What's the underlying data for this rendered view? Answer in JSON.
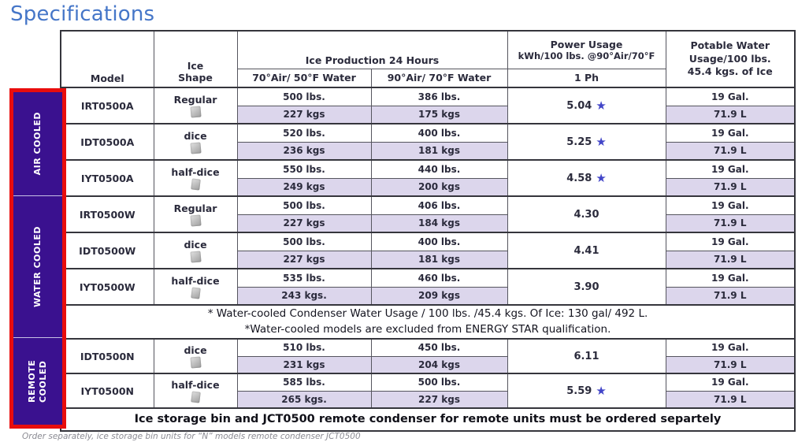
{
  "title": "Specifications",
  "colors": {
    "title_blue": "#4576c8",
    "group_strip_purple": "#3a118f",
    "group_strip_border_red": "#e90d0d",
    "kgs_row_lavender": "#dcd6ec",
    "energy_star_blue": "#4245c8"
  },
  "header": {
    "model": "Model",
    "ice_shape": "Ice Shape",
    "ice_production": "Ice Production 24 Hours",
    "col_air50": "70°Air/ 50°F Water",
    "col_air70": "90°Air/ 70°F Water",
    "power_line1": "Power Usage",
    "power_line2": "kWh/100 lbs. @90°Air/70°F",
    "power_phase": "1 Ph",
    "potable_line1": "Potable Water",
    "potable_line2": "Usage/100 lbs.",
    "potable_line3": "45.4 kgs. of Ice"
  },
  "icons": {
    "energy_star": "★",
    "ice_cube": "ice-cube-icon"
  },
  "groups": [
    {
      "id": "air-cooled",
      "label": "AIR COOLED",
      "rows": [
        {
          "model": "IRT0500A",
          "shape": "Regular",
          "prod_70air_lbs": "500 lbs.",
          "prod_70air_kgs": "227 kgs",
          "prod_90air_lbs": "386 lbs.",
          "prod_90air_kgs": "175 kgs",
          "power_kwh": "5.04",
          "energy_star": true,
          "water_gal": "19 Gal.",
          "water_liters": "71.9 L"
        },
        {
          "model": "IDT0500A",
          "shape": "dice",
          "prod_70air_lbs": "520 lbs.",
          "prod_70air_kgs": "236 kgs",
          "prod_90air_lbs": "400 lbs.",
          "prod_90air_kgs": "181 kgs",
          "power_kwh": "5.25",
          "energy_star": true,
          "water_gal": "19 Gal.",
          "water_liters": "71.9 L"
        },
        {
          "model": "IYT0500A",
          "shape": "half-dice",
          "prod_70air_lbs": "550 lbs.",
          "prod_70air_kgs": "249 kgs",
          "prod_90air_lbs": "440 lbs.",
          "prod_90air_kgs": "200 kgs",
          "power_kwh": "4.58",
          "energy_star": true,
          "water_gal": "19 Gal.",
          "water_liters": "71.9 L"
        }
      ]
    },
    {
      "id": "water-cooled",
      "label": "WATER COOLED",
      "rows": [
        {
          "model": "IRT0500W",
          "shape": "Regular",
          "prod_70air_lbs": "500 lbs.",
          "prod_70air_kgs": "227 kgs",
          "prod_90air_lbs": "406 lbs.",
          "prod_90air_kgs": "184 kgs",
          "power_kwh": "4.30",
          "energy_star": false,
          "water_gal": "19 Gal.",
          "water_liters": "71.9 L"
        },
        {
          "model": "IDT0500W",
          "shape": "dice",
          "prod_70air_lbs": "500 lbs.",
          "prod_70air_kgs": "227 kgs",
          "prod_90air_lbs": "400 lbs.",
          "prod_90air_kgs": "181 kgs",
          "power_kwh": "4.41",
          "energy_star": false,
          "water_gal": "19 Gal.",
          "water_liters": "71.9 L"
        },
        {
          "model": "IYT0500W",
          "shape": "half-dice",
          "prod_70air_lbs": "535 lbs.",
          "prod_70air_kgs": "243 kgs.",
          "prod_90air_lbs": "460 lbs.",
          "prod_90air_kgs": "209 kgs",
          "power_kwh": "3.90",
          "energy_star": false,
          "water_gal": "19 Gal.",
          "water_liters": "71.9 L"
        }
      ],
      "note_lines": [
        "* Water-cooled Condenser Water Usage / 100 lbs. /45.4 kgs. Of Ice: 130 gal/ 492 L.",
        "*Water-cooled models are excluded from ENERGY STAR qualification."
      ]
    },
    {
      "id": "remote-cooled",
      "label": "REMOTE COOLED",
      "rows": [
        {
          "model": "IDT0500N",
          "shape": "dice",
          "prod_70air_lbs": "510 lbs.",
          "prod_70air_kgs": "231 kgs",
          "prod_90air_lbs": "450 lbs.",
          "prod_90air_kgs": "204 kgs",
          "power_kwh": "6.11",
          "energy_star": false,
          "water_gal": "19 Gal.",
          "water_liters": "71.9 L"
        },
        {
          "model": "IYT0500N",
          "shape": "half-dice",
          "prod_70air_lbs": "585 lbs.",
          "prod_70air_kgs": "265 kgs.",
          "prod_90air_lbs": "500 lbs.",
          "prod_90air_kgs": "227 kgs",
          "power_kwh": "5.59",
          "energy_star": true,
          "water_gal": "19 Gal.",
          "water_liters": "71.9 L"
        }
      ],
      "note_lines": [
        "Ice storage bin and JCT0500 remote condenser for remote units must be ordered separtely"
      ]
    }
  ],
  "footnote": "Order separately, ice storage bin units for “N” models remote condenser JCT0500"
}
